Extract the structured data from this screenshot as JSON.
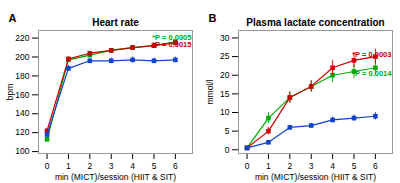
{
  "chart_data": [
    {
      "type": "line",
      "panel_label": "A",
      "title": "Heart rate",
      "xlabel": "min (MICT)/session (HIIT & SIT)",
      "ylabel": "bpm",
      "x": [
        0,
        1,
        2,
        3,
        4,
        5,
        6
      ],
      "xlim": [
        -0.4,
        6.8
      ],
      "xticks": [
        0,
        1,
        2,
        3,
        4,
        5,
        6
      ],
      "ylim": [
        98,
        228
      ],
      "yticks": [
        100,
        120,
        140,
        160,
        180,
        200,
        220
      ],
      "marker": "square",
      "series": [
        {
          "color": "#00aa00",
          "values": [
            113,
            197,
            202,
            207,
            210,
            212,
            216
          ],
          "errors": [
            2,
            2,
            2,
            2,
            2,
            2,
            2
          ]
        },
        {
          "color": "#cc0000",
          "values": [
            122,
            198,
            204,
            207,
            210,
            212,
            215
          ],
          "errors": [
            2,
            2,
            2,
            2,
            2,
            2,
            2
          ]
        },
        {
          "color": "#1144cc",
          "values": [
            118,
            188,
            196,
            196,
            197,
            196,
            197
          ],
          "errors": [
            2,
            3,
            3,
            3,
            3,
            3,
            3
          ]
        }
      ],
      "annotations": [
        {
          "text": "*P = 0.0005",
          "x": 6.75,
          "y": 220,
          "color": "#00aa00"
        },
        {
          "text": "*P = 0.0015",
          "x": 6.75,
          "y": 213,
          "color": "#cc0000"
        }
      ]
    },
    {
      "type": "line",
      "panel_label": "B",
      "title": "Plasma lactate concentration",
      "xlabel": "min (MICT)/session (HIIT & SIT)",
      "ylabel": "mmol/l",
      "x": [
        0,
        1,
        2,
        3,
        4,
        5,
        6
      ],
      "xlim": [
        -0.4,
        6.8
      ],
      "xticks": [
        0,
        1,
        2,
        3,
        4,
        5,
        6
      ],
      "ylim": [
        -1,
        32
      ],
      "yticks": [
        0,
        5,
        10,
        15,
        20,
        25,
        30
      ],
      "marker": "square",
      "series": [
        {
          "color": "#00aa00",
          "values": [
            0.5,
            8.5,
            14,
            17,
            20,
            21,
            22
          ],
          "errors": [
            0.2,
            1.5,
            1.5,
            1.5,
            2,
            2,
            2
          ]
        },
        {
          "color": "#cc0000",
          "values": [
            0.5,
            5,
            14,
            17,
            22,
            24,
            25
          ],
          "errors": [
            0.2,
            1.0,
            1.5,
            1.5,
            2,
            2,
            2
          ]
        },
        {
          "color": "#1144cc",
          "values": [
            0.5,
            2.0,
            6.0,
            6.5,
            8.0,
            8.5,
            9.0
          ],
          "errors": [
            0.1,
            0.4,
            0.6,
            0.6,
            0.8,
            0.8,
            1.0
          ]
        }
      ],
      "annotations": [
        {
          "text": "*P = 0.0014",
          "x": 6.75,
          "y": 20.5,
          "color": "#00aa00"
        },
        {
          "text": "*P = 0.0003",
          "x": 6.75,
          "y": 25.5,
          "color": "#cc0000"
        }
      ]
    }
  ]
}
